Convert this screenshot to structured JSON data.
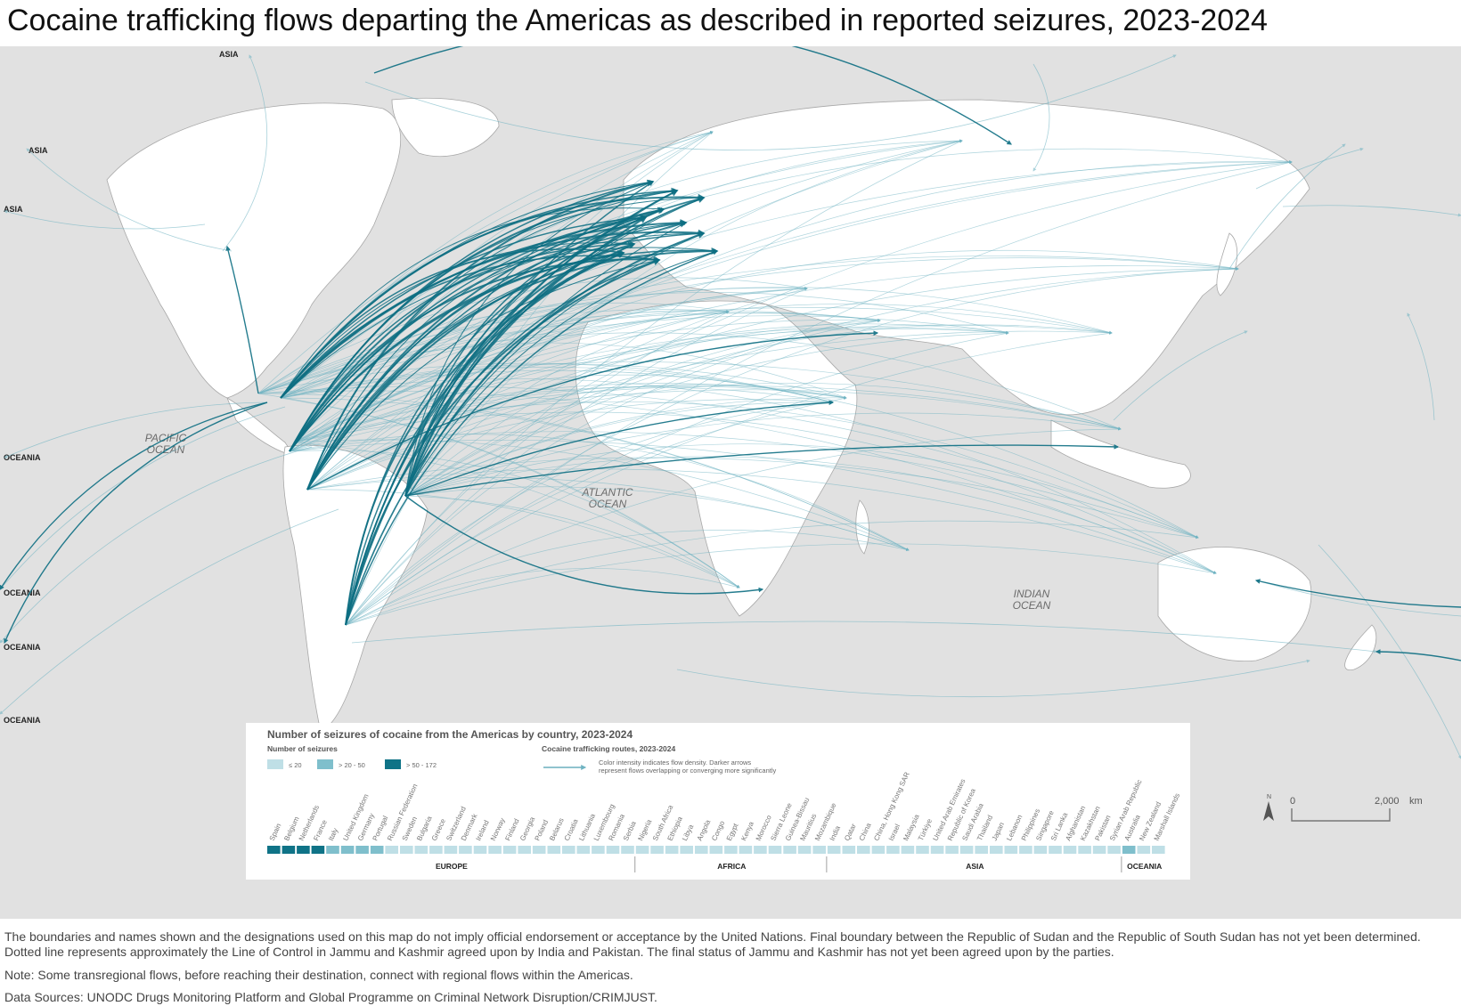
{
  "title": "Cocaine trafficking flows departing the Americas as described in reported seizures, 2023-2024",
  "map": {
    "ocean_labels": [
      {
        "lines": [
          "PACIFIC",
          "OCEAN"
        ]
      },
      {
        "lines": [
          "ATLANTIC",
          "OCEAN"
        ]
      },
      {
        "lines": [
          "INDIAN",
          "OCEAN"
        ]
      }
    ],
    "edge_labels": [
      "ASIA",
      "ASIA",
      "ASIA",
      "OCEANIA",
      "OCEANIA",
      "OCEANIA",
      "OCEANIA"
    ],
    "scale": {
      "zero": "0",
      "distance": "2,000",
      "unit": "km",
      "north": "N"
    }
  },
  "legend": {
    "title": "Number of seizures of cocaine from the Americas by country, 2023-2024",
    "seizures_heading": "Number of seizures",
    "classes": [
      {
        "label": "≤ 20",
        "color": "#bfdfe6"
      },
      {
        "label": "> 20 - 50",
        "color": "#7fbfcc"
      },
      {
        "label": "> 50 - 172",
        "color": "#0f7387"
      }
    ],
    "routes_heading": "Cocaine trafficking routes, 2023-2024",
    "routes_text": [
      "Color intensity indicates flow density. Darker arrows",
      "represent flows overlapping or converging more significantly"
    ],
    "colors": {
      "route": "#1c7f93",
      "route_dark": "#0d6e82",
      "land": "#ffffff",
      "sea": "#e1e1e1",
      "border": "#a8a8a8"
    }
  },
  "countries": [
    {
      "name": "Spain",
      "cls": 2
    },
    {
      "name": "Belgium",
      "cls": 2
    },
    {
      "name": "Netherlands",
      "cls": 2
    },
    {
      "name": "France",
      "cls": 2
    },
    {
      "name": "Italy",
      "cls": 1
    },
    {
      "name": "United Kingdom",
      "cls": 1
    },
    {
      "name": "Germany",
      "cls": 1
    },
    {
      "name": "Portugal",
      "cls": 1
    },
    {
      "name": "Russian Federation",
      "cls": 0
    },
    {
      "name": "Sweden",
      "cls": 0
    },
    {
      "name": "Bulgaria",
      "cls": 0
    },
    {
      "name": "Greece",
      "cls": 0
    },
    {
      "name": "Switzerland",
      "cls": 0
    },
    {
      "name": "Denmark",
      "cls": 0
    },
    {
      "name": "Ireland",
      "cls": 0
    },
    {
      "name": "Norway",
      "cls": 0
    },
    {
      "name": "Finland",
      "cls": 0
    },
    {
      "name": "Georgia",
      "cls": 0
    },
    {
      "name": "Poland",
      "cls": 0
    },
    {
      "name": "Belarus",
      "cls": 0
    },
    {
      "name": "Croatia",
      "cls": 0
    },
    {
      "name": "Lithuania",
      "cls": 0
    },
    {
      "name": "Luxembourg",
      "cls": 0
    },
    {
      "name": "Romania",
      "cls": 0
    },
    {
      "name": "Serbia",
      "cls": 0
    },
    {
      "name": "Nigeria",
      "cls": 0
    },
    {
      "name": "South Africa",
      "cls": 0
    },
    {
      "name": "Ethiopia",
      "cls": 0
    },
    {
      "name": "Libya",
      "cls": 0
    },
    {
      "name": "Angola",
      "cls": 0
    },
    {
      "name": "Congo",
      "cls": 0
    },
    {
      "name": "Egypt",
      "cls": 0
    },
    {
      "name": "Kenya",
      "cls": 0
    },
    {
      "name": "Morocco",
      "cls": 0
    },
    {
      "name": "Sierra Leone",
      "cls": 0
    },
    {
      "name": "Guinea-Bissau",
      "cls": 0
    },
    {
      "name": "Mauritius",
      "cls": 0
    },
    {
      "name": "Mozambique",
      "cls": 0
    },
    {
      "name": "India",
      "cls": 0
    },
    {
      "name": "Qatar",
      "cls": 0
    },
    {
      "name": "China",
      "cls": 0
    },
    {
      "name": "China, Hong Kong SAR",
      "cls": 0
    },
    {
      "name": "Israel",
      "cls": 0
    },
    {
      "name": "Malaysia",
      "cls": 0
    },
    {
      "name": "Türkiye",
      "cls": 0
    },
    {
      "name": "United Arab Emirates",
      "cls": 0
    },
    {
      "name": "Republic of Korea",
      "cls": 0
    },
    {
      "name": "Saudi Arabia",
      "cls": 0
    },
    {
      "name": "Thailand",
      "cls": 0
    },
    {
      "name": "Japan",
      "cls": 0
    },
    {
      "name": "Lebanon",
      "cls": 0
    },
    {
      "name": "Philippines",
      "cls": 0
    },
    {
      "name": "Singapore",
      "cls": 0
    },
    {
      "name": "Sri Lanka",
      "cls": 0
    },
    {
      "name": "Afghanistan",
      "cls": 0
    },
    {
      "name": "Kazakhstan",
      "cls": 0
    },
    {
      "name": "Pakistan",
      "cls": 0
    },
    {
      "name": "Syrian Arab Republic",
      "cls": 0
    },
    {
      "name": "Australia",
      "cls": 1
    },
    {
      "name": "New Zealand",
      "cls": 0
    },
    {
      "name": "Marshall Islands",
      "cls": 0
    }
  ],
  "regions": [
    {
      "name": "EUROPE",
      "count": 25
    },
    {
      "name": "AFRICA",
      "count": 13
    },
    {
      "name": "ASIA",
      "count": 20
    },
    {
      "name": "OCEANIA",
      "count": 3
    }
  ],
  "footer": {
    "disclaimer": "The boundaries and names shown and the designations used on this map do not imply official endorsement or acceptance by the United Nations. Final boundary between the Republic of Sudan and the Republic of South Sudan has not yet been determined. Dotted line represents approximately the Line of Control in Jammu and Kashmir agreed upon by India and Pakistan. The final status of Jammu and Kashmir has not yet been agreed upon by the parties.",
    "note": "Note: Some transregional flows, before reaching their destination, connect with regional flows within the Americas.",
    "sources": "Data Sources: UNODC Drugs Monitoring Platform and Global Programme on Criminal Network Disruption/CRIMJUST."
  }
}
